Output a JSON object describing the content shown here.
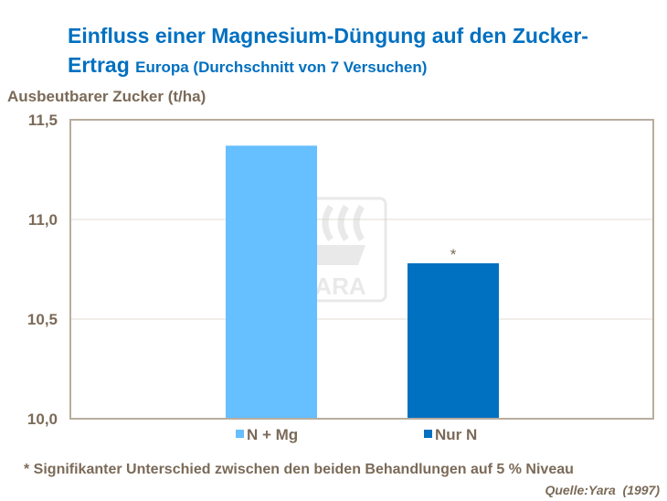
{
  "title": {
    "line1": "Einfluss einer Magnesium-Düngung auf den Zucker-",
    "line2": "Ertrag",
    "line2_sub": "Europa (Durchschnitt von 7 Versuchen)"
  },
  "footnote": "* Signifikanter Unterschied zwischen den beiden Behandlungen auf 5 % Niveau",
  "source": "Quelle:Yara  (1997)",
  "watermark": "YARA",
  "chart_data": {
    "type": "bar",
    "title": "Einfluss einer Magnesium-Düngung auf den Zucker-Ertrag Europa (Durchschnitt von 7 Versuchen)",
    "ylabel": "Ausbeutbarer Zucker (t/ha)",
    "ylim": [
      10.0,
      11.5
    ],
    "yticks": [
      "10,0",
      "10,5",
      "11,0",
      "11,5"
    ],
    "grid": true,
    "legend_position": "bottom",
    "series": [
      {
        "name": "N + Mg",
        "values": [
          11.37
        ],
        "color": "#66bfff",
        "annotation": ""
      },
      {
        "name": "Nur N",
        "values": [
          10.78
        ],
        "color": "#0070c0",
        "annotation": "*"
      }
    ]
  }
}
